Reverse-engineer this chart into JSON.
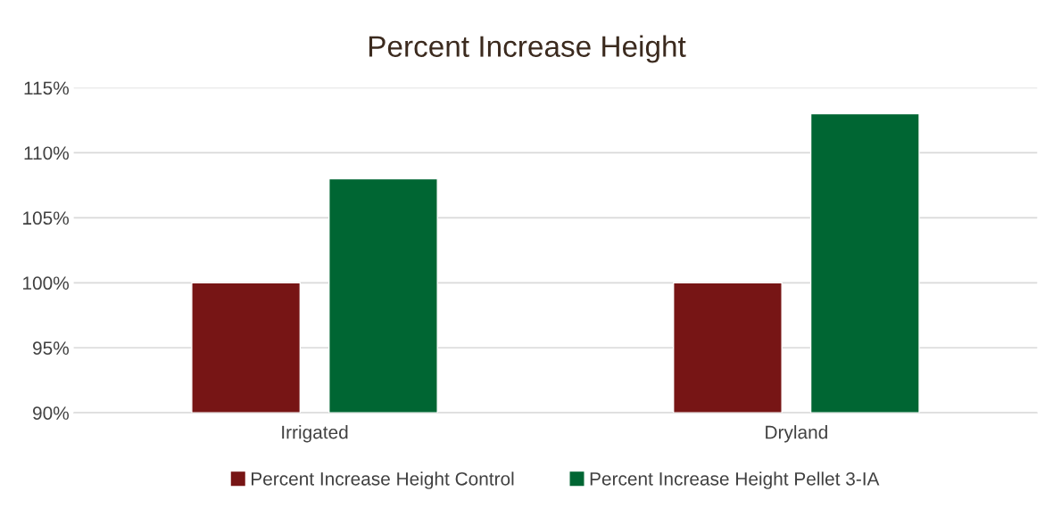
{
  "chart_data": {
    "type": "bar",
    "title": "Percent Increase Height",
    "categories": [
      "Irrigated",
      "Dryland"
    ],
    "series": [
      {
        "name": "Percent Increase Height Control",
        "color": "#771515",
        "values": [
          100,
          100
        ]
      },
      {
        "name": "Percent Increase Height Pellet 3-IA",
        "color": "#006633",
        "values": [
          108,
          113
        ]
      }
    ],
    "ylim": [
      90,
      115
    ],
    "yticks": [
      {
        "value": 90,
        "label": "90%"
      },
      {
        "value": 95,
        "label": "95%"
      },
      {
        "value": 100,
        "label": "100%"
      },
      {
        "value": 105,
        "label": "105%"
      },
      {
        "value": 110,
        "label": "110%"
      },
      {
        "value": 115,
        "label": "115%"
      }
    ],
    "grid": "y",
    "legend": "bottom"
  }
}
